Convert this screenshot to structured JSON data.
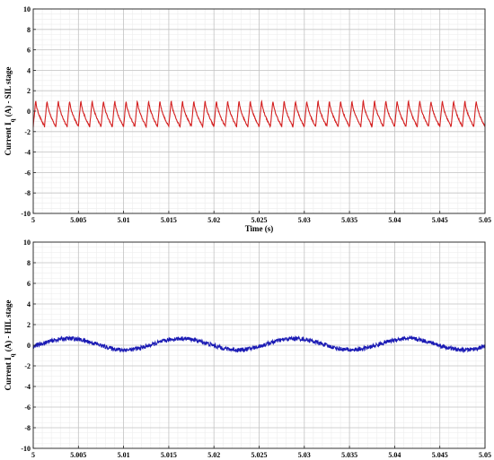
{
  "chart_data": [
    {
      "type": "line",
      "title": "",
      "xlabel": "Time (s)",
      "ylabel": "Current I q (A) - SIL stage",
      "ylabel_main": "Current I",
      "ylabel_sub": "q",
      "ylabel_rest": " (A) - SIL stage",
      "xlim": [
        5,
        5.05
      ],
      "ylim": [
        -10,
        10
      ],
      "x_ticks": [
        "5",
        "5.005",
        "5.01",
        "5.015",
        "5.02",
        "5.025",
        "5.03",
        "5.035",
        "5.04",
        "5.045",
        "5.05"
      ],
      "y_ticks": [
        "10",
        "8",
        "6",
        "4",
        "2",
        "0",
        "-2",
        "-4",
        "-6",
        "-8",
        "-10"
      ],
      "grid": true,
      "color": "#d42020",
      "series": [
        {
          "waveform": "sawtooth",
          "period": 0.00125,
          "min": -1.5,
          "max": 1.1,
          "mean": 0
        }
      ]
    },
    {
      "type": "line",
      "title": "",
      "xlabel": "",
      "ylabel": "Current I q (A) - HIL stage",
      "ylabel_main": "Current I",
      "ylabel_sub": "q",
      "ylabel_rest": " (A) - HIL stage",
      "xlim": [
        5,
        5.05
      ],
      "ylim": [
        -10,
        10
      ],
      "x_ticks": [
        "5",
        "5.005",
        "5.01",
        "5.015",
        "5.02",
        "5.025",
        "5.03",
        "5.035",
        "5.04",
        "5.045",
        "5.05"
      ],
      "y_ticks": [
        "10",
        "8",
        "6",
        "4",
        "2",
        "0",
        "-2",
        "-4",
        "-6",
        "-8",
        "-10"
      ],
      "grid": true,
      "color": "#1a1ab4",
      "series": [
        {
          "waveform": "noisy-sine",
          "period": 0.0125,
          "offset": 0.1,
          "amplitude": 0.55,
          "noise": 0.2
        }
      ]
    }
  ]
}
